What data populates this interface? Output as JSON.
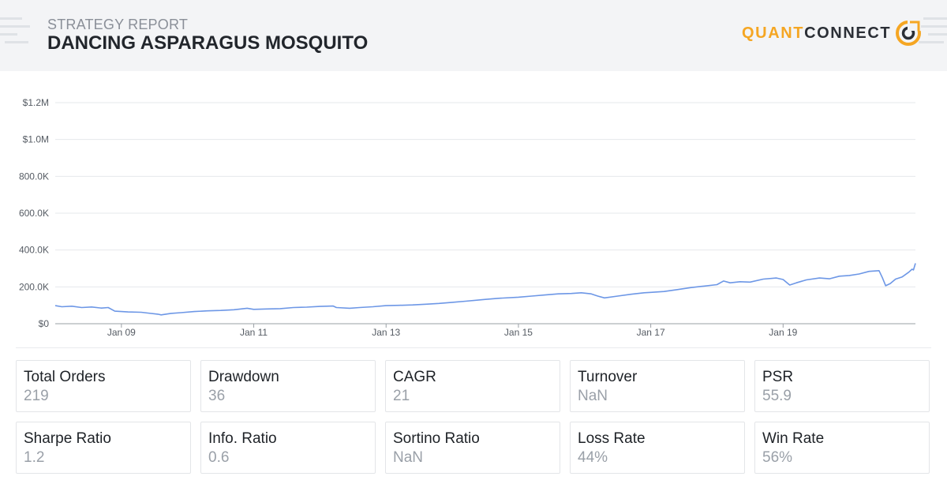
{
  "header": {
    "subtitle": "STRATEGY REPORT",
    "title": "DANCING ASPARAGUS MOSQUITO",
    "logo_quant": "QUANT",
    "logo_connect": "CONNECT",
    "colors": {
      "background": "#f3f4f6",
      "logo_orange": "#f5a623",
      "logo_dark": "#2b2f36"
    }
  },
  "chart_data": {
    "type": "line",
    "title": "",
    "xlabel": "",
    "ylabel": "",
    "ylim": [
      0,
      1200000
    ],
    "y_ticks": [
      {
        "value": 0,
        "label": "$0"
      },
      {
        "value": 200000,
        "label": "200.0K"
      },
      {
        "value": 400000,
        "label": "400.0K"
      },
      {
        "value": 600000,
        "label": "600.0K"
      },
      {
        "value": 800000,
        "label": "800.0K"
      },
      {
        "value": 1000000,
        "label": "$1.0M"
      },
      {
        "value": 1200000,
        "label": "$1.2M"
      }
    ],
    "xlim": [
      2008.0,
      2021.0
    ],
    "x_ticks": [
      {
        "value": 2009.0,
        "label": "Jan 09"
      },
      {
        "value": 2011.0,
        "label": "Jan 11"
      },
      {
        "value": 2013.0,
        "label": "Jan 13"
      },
      {
        "value": 2015.0,
        "label": "Jan 15"
      },
      {
        "value": 2017.0,
        "label": "Jan 17"
      },
      {
        "value": 2019.0,
        "label": "Jan 19"
      }
    ],
    "grid": true,
    "series": [
      {
        "color": "#6d97e6",
        "points": [
          [
            2008.0,
            98000
          ],
          [
            2008.1,
            92000
          ],
          [
            2008.25,
            95000
          ],
          [
            2008.4,
            88000
          ],
          [
            2008.55,
            91000
          ],
          [
            2008.7,
            85000
          ],
          [
            2008.8,
            88000
          ],
          [
            2008.9,
            68000
          ],
          [
            2009.1,
            64000
          ],
          [
            2009.3,
            62000
          ],
          [
            2009.4,
            58000
          ],
          [
            2009.55,
            52000
          ],
          [
            2009.6,
            48000
          ],
          [
            2009.75,
            56000
          ],
          [
            2009.9,
            60000
          ],
          [
            2010.1,
            66000
          ],
          [
            2010.3,
            70000
          ],
          [
            2010.5,
            72000
          ],
          [
            2010.7,
            76000
          ],
          [
            2010.9,
            84000
          ],
          [
            2011.0,
            78000
          ],
          [
            2011.2,
            80000
          ],
          [
            2011.4,
            82000
          ],
          [
            2011.6,
            88000
          ],
          [
            2011.8,
            90000
          ],
          [
            2012.0,
            94000
          ],
          [
            2012.2,
            96000
          ],
          [
            2012.25,
            88000
          ],
          [
            2012.45,
            84000
          ],
          [
            2012.6,
            88000
          ],
          [
            2012.8,
            92000
          ],
          [
            2013.0,
            98000
          ],
          [
            2013.2,
            100000
          ],
          [
            2013.4,
            102000
          ],
          [
            2013.6,
            106000
          ],
          [
            2013.8,
            110000
          ],
          [
            2014.0,
            116000
          ],
          [
            2014.2,
            122000
          ],
          [
            2014.5,
            132000
          ],
          [
            2014.7,
            138000
          ],
          [
            2015.0,
            144000
          ],
          [
            2015.2,
            150000
          ],
          [
            2015.4,
            156000
          ],
          [
            2015.6,
            162000
          ],
          [
            2015.8,
            164000
          ],
          [
            2015.95,
            168000
          ],
          [
            2016.1,
            162000
          ],
          [
            2016.2,
            150000
          ],
          [
            2016.3,
            140000
          ],
          [
            2016.5,
            150000
          ],
          [
            2016.7,
            160000
          ],
          [
            2016.9,
            168000
          ],
          [
            2017.0,
            170000
          ],
          [
            2017.2,
            175000
          ],
          [
            2017.4,
            185000
          ],
          [
            2017.6,
            196000
          ],
          [
            2017.8,
            204000
          ],
          [
            2018.0,
            212000
          ],
          [
            2018.1,
            232000
          ],
          [
            2018.2,
            222000
          ],
          [
            2018.35,
            228000
          ],
          [
            2018.5,
            226000
          ],
          [
            2018.7,
            242000
          ],
          [
            2018.9,
            248000
          ],
          [
            2019.0,
            240000
          ],
          [
            2019.1,
            210000
          ],
          [
            2019.2,
            222000
          ],
          [
            2019.35,
            238000
          ],
          [
            2019.55,
            248000
          ],
          [
            2019.7,
            244000
          ],
          [
            2019.85,
            258000
          ],
          [
            2020.0,
            262000
          ],
          [
            2020.15,
            270000
          ],
          [
            2020.3,
            284000
          ],
          [
            2020.45,
            288000
          ],
          [
            2020.5,
            250000
          ],
          [
            2020.55,
            206000
          ],
          [
            2020.62,
            218000
          ],
          [
            2020.7,
            242000
          ],
          [
            2020.8,
            254000
          ],
          [
            2020.9,
            280000
          ],
          [
            2020.95,
            296000
          ],
          [
            2020.97,
            292000
          ],
          [
            2021.0,
            328000
          ]
        ]
      }
    ]
  },
  "metrics": [
    {
      "label": "Total Orders",
      "value": "219"
    },
    {
      "label": "Drawdown",
      "value": "36"
    },
    {
      "label": "CAGR",
      "value": "21"
    },
    {
      "label": "Turnover",
      "value": "NaN"
    },
    {
      "label": "PSR",
      "value": "55.9"
    },
    {
      "label": "Sharpe Ratio",
      "value": "1.2"
    },
    {
      "label": "Info. Ratio",
      "value": "0.6"
    },
    {
      "label": "Sortino Ratio",
      "value": "NaN"
    },
    {
      "label": "Loss Rate",
      "value": "44%"
    },
    {
      "label": "Win Rate",
      "value": "56%"
    }
  ]
}
